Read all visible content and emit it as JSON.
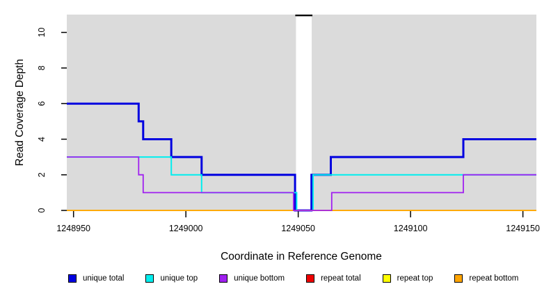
{
  "chart_data": {
    "type": "line",
    "subtype": "step-coverage",
    "title": "",
    "xlabel": "Coordinate in Reference Genome",
    "ylabel": "Read Coverage Depth",
    "xlim": [
      1248947,
      1249156
    ],
    "ylim": [
      0,
      11
    ],
    "x_ticks": [
      "1248950",
      "1249000",
      "1249050",
      "1249100",
      "1249150"
    ],
    "x_tick_values": [
      1248950,
      1249000,
      1249050,
      1249100,
      1249150
    ],
    "y_ticks": [
      "0",
      "2",
      "4",
      "6",
      "8",
      "10"
    ],
    "y_tick_values": [
      0,
      2,
      4,
      6,
      8,
      10
    ],
    "grid": "off",
    "plot_bg_color": "#dbdbdb",
    "gap_region": {
      "x_start": 1249049,
      "x_end": 1249056,
      "fill": "#ffffff",
      "top_cap_color": "#000000",
      "top_cap_depth": 11
    },
    "legend_position": "bottom",
    "series": [
      {
        "name": "unique total",
        "color": "#0000e0",
        "width": 3,
        "zorder": 3,
        "points": [
          [
            1248947,
            6
          ],
          [
            1248979,
            6
          ],
          [
            1248979,
            5
          ],
          [
            1248981,
            5
          ],
          [
            1248981,
            4
          ],
          [
            1248993.5,
            4
          ],
          [
            1248993.5,
            3
          ],
          [
            1249007,
            3
          ],
          [
            1249007,
            2
          ],
          [
            1249048.6,
            2
          ],
          [
            1249048.6,
            0
          ],
          [
            1249055.9,
            0
          ],
          [
            1249055.9,
            2
          ],
          [
            1249064.5,
            2
          ],
          [
            1249064.5,
            3
          ],
          [
            1249123.5,
            3
          ],
          [
            1249123.5,
            4
          ],
          [
            1249156,
            4
          ]
        ]
      },
      {
        "name": "unique top",
        "color": "#00eeee",
        "width": 2,
        "zorder": 4,
        "points": [
          [
            1248947,
            3
          ],
          [
            1248993.5,
            3
          ],
          [
            1248993.5,
            2
          ],
          [
            1249007,
            2
          ],
          [
            1249007,
            1
          ],
          [
            1249049.3,
            1
          ],
          [
            1249049.3,
            0
          ],
          [
            1249056.6,
            0
          ],
          [
            1249056.6,
            2
          ],
          [
            1249156,
            2
          ]
        ]
      },
      {
        "name": "unique bottom",
        "color": "#a020f0",
        "width": 1.8,
        "zorder": 6,
        "points": [
          [
            1248947,
            3
          ],
          [
            1248979,
            3
          ],
          [
            1248979,
            2
          ],
          [
            1248981,
            2
          ],
          [
            1248981,
            1
          ],
          [
            1249047.9,
            1
          ],
          [
            1249047.9,
            0
          ],
          [
            1249064.9,
            0
          ],
          [
            1249064.9,
            1
          ],
          [
            1249123.5,
            1
          ],
          [
            1249123.5,
            2
          ],
          [
            1249156,
            2
          ]
        ]
      },
      {
        "name": "repeat total",
        "color": "#ee0000",
        "width": 1.8,
        "zorder": 1,
        "points": [
          [
            1248947,
            0
          ],
          [
            1249156,
            0
          ]
        ]
      },
      {
        "name": "repeat top",
        "color": "#ffff00",
        "width": 1.8,
        "zorder": 2,
        "points": [
          [
            1248947,
            0
          ],
          [
            1249156,
            0
          ]
        ]
      },
      {
        "name": "repeat bottom",
        "color": "#ffa500",
        "width": 1.8,
        "zorder": 5,
        "points": [
          [
            1248947,
            0
          ],
          [
            1249156,
            0
          ]
        ]
      }
    ]
  }
}
